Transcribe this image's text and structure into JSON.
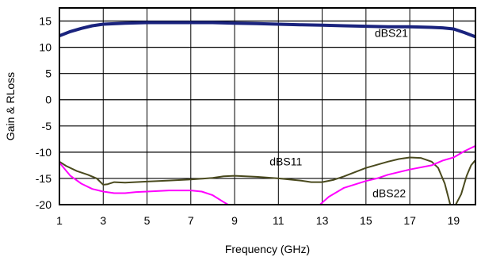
{
  "chart_data": {
    "type": "line",
    "title": "",
    "xlabel": "Frequency (GHz)",
    "ylabel": "Gain & RLoss",
    "xlim": [
      1,
      20
    ],
    "ylim": [
      -20,
      17.5
    ],
    "x_ticks": [
      1,
      3,
      5,
      7,
      9,
      11,
      13,
      15,
      17,
      19
    ],
    "y_ticks": [
      15,
      10,
      5,
      0,
      -5,
      -10,
      -15,
      -20
    ],
    "grid": true,
    "series": [
      {
        "name": "dBS21",
        "color": "#1a237e",
        "label_at": [
          15.4,
          12.0
        ],
        "points": [
          [
            1,
            12.2
          ],
          [
            1.5,
            13.0
          ],
          [
            2,
            13.6
          ],
          [
            2.5,
            14.1
          ],
          [
            3,
            14.4
          ],
          [
            4,
            14.6
          ],
          [
            5,
            14.7
          ],
          [
            6,
            14.7
          ],
          [
            7,
            14.7
          ],
          [
            8,
            14.7
          ],
          [
            9,
            14.6
          ],
          [
            10,
            14.5
          ],
          [
            11,
            14.4
          ],
          [
            12,
            14.3
          ],
          [
            13,
            14.2
          ],
          [
            14,
            14.1
          ],
          [
            15,
            14.0
          ],
          [
            16,
            13.9
          ],
          [
            17,
            13.9
          ],
          [
            18,
            13.8
          ],
          [
            18.5,
            13.7
          ],
          [
            19,
            13.5
          ],
          [
            19.5,
            12.8
          ],
          [
            20,
            12.0
          ]
        ]
      },
      {
        "name": "dBS11",
        "color": "#4a4a1e",
        "label_at": [
          10.6,
          -12.5
        ],
        "points": [
          [
            1,
            -11.8
          ],
          [
            1.3,
            -12.6
          ],
          [
            1.8,
            -13.6
          ],
          [
            2.3,
            -14.3
          ],
          [
            2.7,
            -15.0
          ],
          [
            3,
            -16.2
          ],
          [
            3.2,
            -16.1
          ],
          [
            3.5,
            -15.7
          ],
          [
            4,
            -15.8
          ],
          [
            5,
            -15.6
          ],
          [
            6,
            -15.4
          ],
          [
            7,
            -15.2
          ],
          [
            8,
            -14.9
          ],
          [
            8.5,
            -14.6
          ],
          [
            9,
            -14.5
          ],
          [
            10,
            -14.7
          ],
          [
            11,
            -15.0
          ],
          [
            12,
            -15.4
          ],
          [
            12.5,
            -15.7
          ],
          [
            13,
            -15.7
          ],
          [
            13.5,
            -15.3
          ],
          [
            14,
            -14.6
          ],
          [
            15,
            -13.0
          ],
          [
            16,
            -11.8
          ],
          [
            16.5,
            -11.3
          ],
          [
            17,
            -11.0
          ],
          [
            17.5,
            -11.1
          ],
          [
            18,
            -11.8
          ],
          [
            18.3,
            -13.0
          ],
          [
            18.6,
            -16.0
          ],
          [
            18.85,
            -20.0
          ],
          [
            19.1,
            -20.0
          ],
          [
            19.35,
            -18.0
          ],
          [
            19.6,
            -14.5
          ],
          [
            19.8,
            -12.5
          ],
          [
            20,
            -11.5
          ]
        ]
      },
      {
        "name": "dBS22",
        "color": "#ff00ff",
        "label_at": [
          15.3,
          -18.6
        ],
        "points": [
          [
            1,
            -12.0
          ],
          [
            1.5,
            -14.5
          ],
          [
            2,
            -16.0
          ],
          [
            2.5,
            -17.0
          ],
          [
            3,
            -17.5
          ],
          [
            3.5,
            -17.8
          ],
          [
            4,
            -17.8
          ],
          [
            4.5,
            -17.6
          ],
          [
            5,
            -17.5
          ],
          [
            6,
            -17.3
          ],
          [
            7,
            -17.3
          ],
          [
            7.5,
            -17.5
          ],
          [
            8,
            -18.2
          ],
          [
            8.5,
            -19.5
          ],
          [
            8.7,
            -20.0
          ]
        ],
        "points2": [
          [
            12.9,
            -20.0
          ],
          [
            13.3,
            -18.5
          ],
          [
            14,
            -16.8
          ],
          [
            15,
            -15.5
          ],
          [
            15.5,
            -15.0
          ],
          [
            16,
            -14.3
          ],
          [
            17,
            -13.3
          ],
          [
            18,
            -12.5
          ],
          [
            18.5,
            -11.6
          ],
          [
            19,
            -11.0
          ],
          [
            19.5,
            -9.8
          ],
          [
            20,
            -8.8
          ]
        ]
      }
    ]
  }
}
